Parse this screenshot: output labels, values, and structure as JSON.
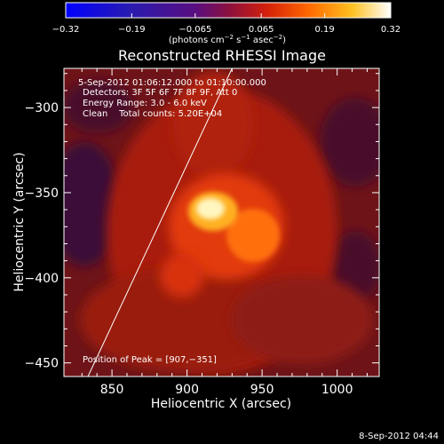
{
  "chart_data": {
    "type": "heatmap",
    "title": "Reconstructed RHESSI Image",
    "xlabel": "Heliocentric X (arcsec)",
    "ylabel": "Heliocentric Y (arcsec)",
    "xlim": [
      818,
      1028
    ],
    "ylim": [
      -458,
      -277
    ],
    "x_ticks": [
      850,
      900,
      950,
      1000
    ],
    "y_ticks": [
      -300,
      -350,
      -400,
      -450
    ],
    "x_tick_labels": [
      "850",
      "900",
      "950",
      "1000"
    ],
    "y_tick_labels": [
      "−300",
      "−350",
      "−400",
      "−450"
    ],
    "colorbar": {
      "range": [
        -0.32,
        0.32
      ],
      "tick_values": [
        -0.32,
        -0.19,
        -0.065,
        0.065,
        0.19,
        0.32
      ],
      "tick_labels": [
        "−0.32",
        "−0.19",
        "−0.065",
        "0.065",
        "0.19",
        "0.32"
      ],
      "unit_label": "(photons cm",
      "unit_sup1": "−2",
      "unit_mid": " s",
      "unit_sup2": "−1",
      "unit_mid2": " asec",
      "unit_sup3": "−2",
      "unit_end": ")"
    },
    "annotations": [
      "5-Sep-2012 01:06:12.000 to 01:10:00.000",
      "Detectors: 3F 5F 6F 7F 8F 9F, Att 0",
      "Energy Range: 3.0 - 6.0 keV",
      "Clean    Total counts: 5.20E+04"
    ],
    "peak_label": "Position of Peak = [907,−351]",
    "peak": {
      "x": 907,
      "y": -351
    },
    "limb_line": [
      {
        "x": 834,
        "y": -458
      },
      {
        "x": 930,
        "y": -277
      }
    ],
    "timestamp": "8-Sep-2012 04:44"
  }
}
